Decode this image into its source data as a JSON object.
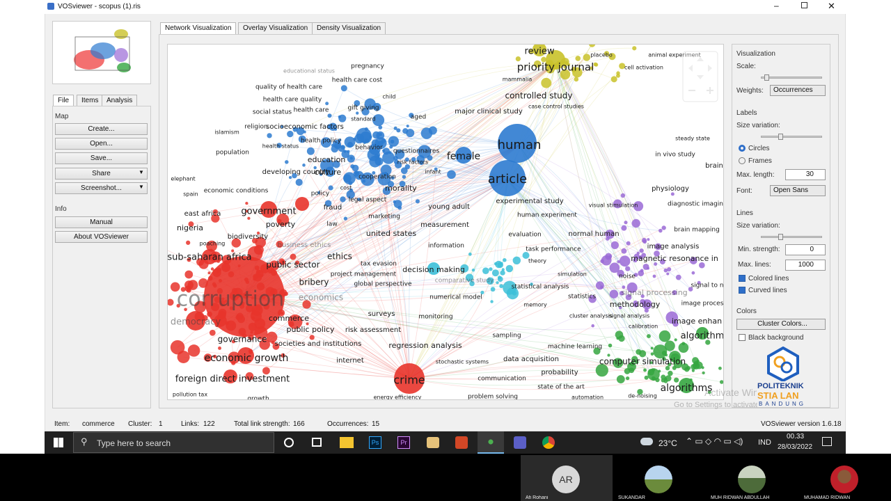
{
  "window": {
    "title": "VOSviewer - scopus (1).ris"
  },
  "view_tabs": [
    "Network Visualization",
    "Overlay Visualization",
    "Density Visualization"
  ],
  "left_panel": {
    "tabs": [
      "File",
      "Items",
      "Analysis"
    ],
    "map_header": "Map",
    "map_buttons": [
      "Create...",
      "Open...",
      "Save...",
      "Share",
      "Screenshot..."
    ],
    "info_header": "Info",
    "info_buttons": [
      "Manual",
      "About VOSviewer"
    ]
  },
  "network": {
    "terms": [
      "corruption",
      "government",
      "sub-saharan africa",
      "economic growth",
      "foreign direct investment",
      "governance",
      "commerce",
      "public sector",
      "ethics",
      "bribery",
      "economics",
      "democracy",
      "public policy",
      "risk assessment",
      "societies and institutions",
      "internet",
      "crime",
      "regression analysis",
      "surveys",
      "nigeria",
      "east africa",
      "poverty",
      "biodiversity",
      "economic conditions",
      "elephant",
      "spain",
      "poaching",
      "pollution tax",
      "growth",
      "tax evasion",
      "project management",
      "global perspective",
      "business ethics",
      "human",
      "article",
      "female",
      "education",
      "culture",
      "morality",
      "young adult",
      "united states",
      "measurement",
      "decision making",
      "fraud",
      "marketing",
      "cooperation",
      "legal aspect",
      "cost",
      "policy",
      "law",
      "infant",
      "risk factors",
      "questionnaires",
      "behavior",
      "health policy",
      "health status",
      "population",
      "islamism",
      "religion",
      "socioeconomic factors",
      "social status",
      "health care",
      "health care quality",
      "quality of health care",
      "health care cost",
      "pregnancy",
      "gift giving",
      "standard",
      "child",
      "aged",
      "major clinical study",
      "developing country",
      "educational status",
      "review",
      "priority journal",
      "controlled study",
      "placebo",
      "animal experiment",
      "cell activation",
      "case control studies",
      "mammalia",
      "experimental study",
      "human experiment",
      "visual stimulation",
      "normal human",
      "evaluation",
      "task performance",
      "theory",
      "simulation",
      "statistical analysis",
      "statistics",
      "memory",
      "methodology",
      "cluster analysis",
      "signal analysis",
      "calibration",
      "noise",
      "signal processing",
      "image analysis",
      "magnetic resonance in",
      "physiology",
      "diagnostic imagin",
      "brain mapping",
      "brain",
      "in vivo study",
      "steady state",
      "image proces",
      "signal to n",
      "numerical model",
      "information",
      "monitoring",
      "comparative study",
      "algorithm",
      "algorithms",
      "computer simulation",
      "image enhan",
      "machine learning",
      "data acquisition",
      "probability",
      "state of the art",
      "automation",
      "problem solving",
      "communication",
      "sampling",
      "stochastic systems",
      "energy efficiency",
      "de-noising"
    ]
  },
  "right_panel": {
    "visualization": {
      "header": "Visualization",
      "scale_label": "Scale:",
      "weights_label": "Weights:",
      "weights_value": "Occurrences"
    },
    "labels": {
      "header": "Labels",
      "size_variation_label": "Size variation:",
      "options": [
        "Circles",
        "Frames"
      ],
      "max_length_label": "Max. length:",
      "max_length": 30,
      "font_label": "Font:",
      "font_value": "Open Sans"
    },
    "lines": {
      "header": "Lines",
      "size_variation_label": "Size variation:",
      "min_strength_label": "Min. strength:",
      "min_strength": 0,
      "max_lines_label": "Max. lines:",
      "max_lines": 1000,
      "checkboxes": [
        "Colored lines",
        "Curved lines"
      ]
    },
    "colors": {
      "header": "Colors",
      "button": "Cluster Colors...",
      "checkbox": "Black background"
    }
  },
  "status_bar": {
    "fields": [
      {
        "label": "Item:",
        "value": "commerce"
      },
      {
        "label": "Cluster:",
        "value": 1
      },
      {
        "label": "Links:",
        "value": 122
      },
      {
        "label": "Total link strength:",
        "value": 166
      },
      {
        "label": "Occurrences:",
        "value": 15
      }
    ],
    "version": "VOSviewer version 1.6.18"
  },
  "logo": {
    "lines": [
      "POLITEKNIK",
      "STIA LAN",
      "BANDUNG"
    ]
  },
  "watermark": [
    "Activate Windows",
    "Go to Settings to activate Windows."
  ],
  "taskbar": {
    "search": "Type here to search",
    "app_icons": [
      "Ps",
      "Pr"
    ],
    "weather": "23°C",
    "language": "IND",
    "time": "00.33",
    "date": "28/03/2022"
  },
  "participants": [
    {
      "initials": "AR",
      "name": "Afi Rohani"
    },
    {
      "name": "SUKANDAR"
    },
    {
      "name": "MUH RIDWAN ABDULLAH"
    },
    {
      "name": "MUHAMAD RIDWAN"
    }
  ]
}
